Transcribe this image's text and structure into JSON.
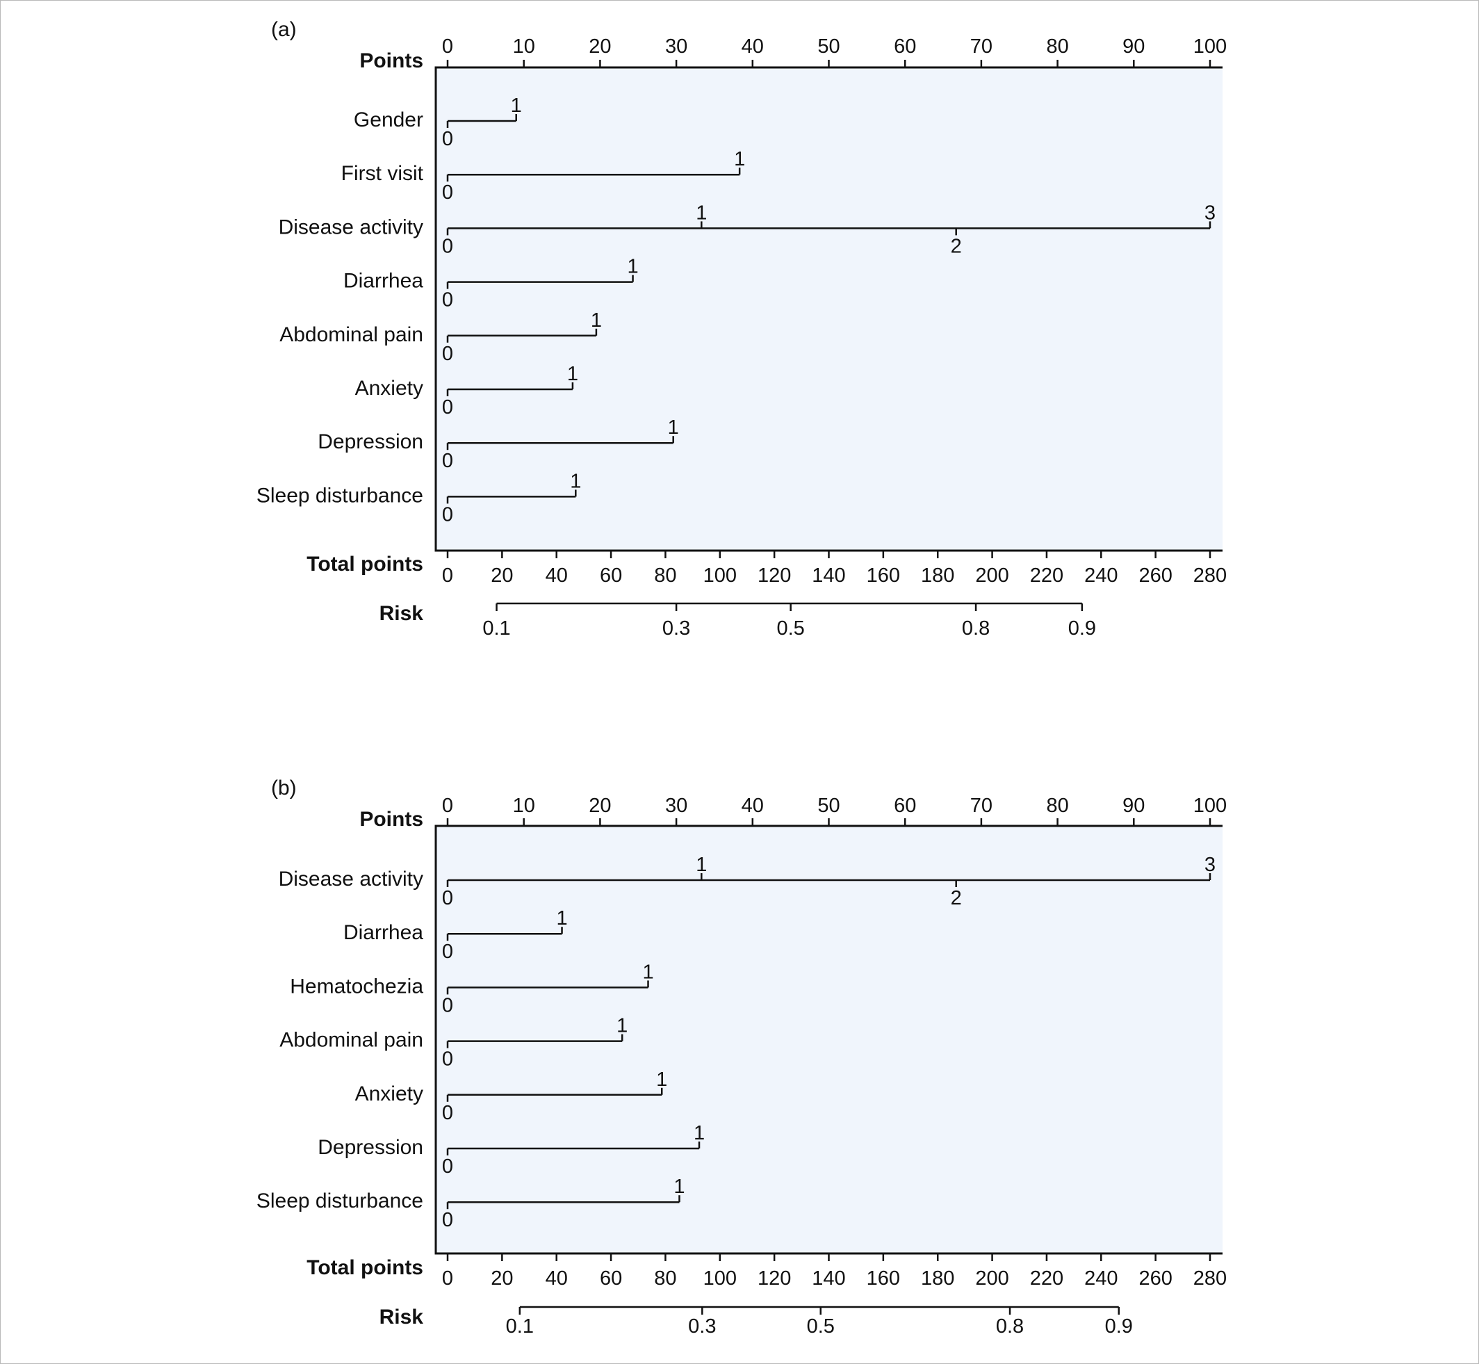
{
  "chart_data": [
    {
      "type": "nomogram",
      "panel_label": "(a)",
      "points_label": "Points",
      "total_points_label": "Total points",
      "risk_label": "Risk",
      "points_axis": {
        "range": [
          0,
          100
        ],
        "ticks": [
          0,
          10,
          20,
          30,
          40,
          50,
          60,
          70,
          80,
          90,
          100
        ]
      },
      "total_points_axis": {
        "range": [
          0,
          280
        ],
        "ticks": [
          0,
          20,
          40,
          60,
          80,
          100,
          120,
          140,
          160,
          180,
          200,
          220,
          240,
          260,
          280
        ]
      },
      "risk_axis": [
        {
          "label": "0.1",
          "total_points": 18
        },
        {
          "label": "0.3",
          "total_points": 84
        },
        {
          "label": "0.5",
          "total_points": 126
        },
        {
          "label": "0.8",
          "total_points": 194
        },
        {
          "label": "0.9",
          "total_points": 233
        }
      ],
      "variables": [
        {
          "name": "Gender",
          "levels": [
            {
              "label": "0",
              "points": 0,
              "position": "below"
            },
            {
              "label": "1",
              "points": 9,
              "position": "above"
            }
          ]
        },
        {
          "name": "First visit",
          "levels": [
            {
              "label": "0",
              "points": 0,
              "position": "below"
            },
            {
              "label": "1",
              "points": 38.3,
              "position": "above"
            }
          ]
        },
        {
          "name": "Disease activity",
          "levels": [
            {
              "label": "0",
              "points": 0,
              "position": "below"
            },
            {
              "label": "1",
              "points": 33.3,
              "position": "above"
            },
            {
              "label": "2",
              "points": 66.7,
              "position": "below"
            },
            {
              "label": "3",
              "points": 100,
              "position": "above"
            }
          ]
        },
        {
          "name": "Diarrhea",
          "levels": [
            {
              "label": "0",
              "points": 0,
              "position": "below"
            },
            {
              "label": "1",
              "points": 24.3,
              "position": "above"
            }
          ]
        },
        {
          "name": "Abdominal pain",
          "levels": [
            {
              "label": "0",
              "points": 0,
              "position": "below"
            },
            {
              "label": "1",
              "points": 19.5,
              "position": "above"
            }
          ]
        },
        {
          "name": "Anxiety",
          "levels": [
            {
              "label": "0",
              "points": 0,
              "position": "below"
            },
            {
              "label": "1",
              "points": 16.4,
              "position": "above"
            }
          ]
        },
        {
          "name": "Depression",
          "levels": [
            {
              "label": "0",
              "points": 0,
              "position": "below"
            },
            {
              "label": "1",
              "points": 29.6,
              "position": "above"
            }
          ]
        },
        {
          "name": "Sleep disturbance",
          "levels": [
            {
              "label": "0",
              "points": 0,
              "position": "below"
            },
            {
              "label": "1",
              "points": 16.8,
              "position": "above"
            }
          ]
        }
      ]
    },
    {
      "type": "nomogram",
      "panel_label": "(b)",
      "points_label": "Points",
      "total_points_label": "Total points",
      "risk_label": "Risk",
      "points_axis": {
        "range": [
          0,
          100
        ],
        "ticks": [
          0,
          10,
          20,
          30,
          40,
          50,
          60,
          70,
          80,
          90,
          100
        ]
      },
      "total_points_axis": {
        "range": [
          0,
          280
        ],
        "ticks": [
          0,
          20,
          40,
          60,
          80,
          100,
          120,
          140,
          160,
          180,
          200,
          220,
          240,
          260,
          280
        ]
      },
      "risk_axis": [
        {
          "label": "0.1",
          "total_points": 26.5
        },
        {
          "label": "0.3",
          "total_points": 93.5
        },
        {
          "label": "0.5",
          "total_points": 137
        },
        {
          "label": "0.8",
          "total_points": 206.5
        },
        {
          "label": "0.9",
          "total_points": 246.5
        }
      ],
      "variables": [
        {
          "name": "Disease activity",
          "levels": [
            {
              "label": "0",
              "points": 0,
              "position": "below"
            },
            {
              "label": "1",
              "points": 33.3,
              "position": "above"
            },
            {
              "label": "2",
              "points": 66.7,
              "position": "below"
            },
            {
              "label": "3",
              "points": 100,
              "position": "above"
            }
          ]
        },
        {
          "name": "Diarrhea",
          "levels": [
            {
              "label": "0",
              "points": 0,
              "position": "below"
            },
            {
              "label": "1",
              "points": 15,
              "position": "above"
            }
          ]
        },
        {
          "name": "Hematochezia",
          "levels": [
            {
              "label": "0",
              "points": 0,
              "position": "below"
            },
            {
              "label": "1",
              "points": 26.3,
              "position": "above"
            }
          ]
        },
        {
          "name": "Abdominal pain",
          "levels": [
            {
              "label": "0",
              "points": 0,
              "position": "below"
            },
            {
              "label": "1",
              "points": 22.9,
              "position": "above"
            }
          ]
        },
        {
          "name": "Anxiety",
          "levels": [
            {
              "label": "0",
              "points": 0,
              "position": "below"
            },
            {
              "label": "1",
              "points": 28.1,
              "position": "above"
            }
          ]
        },
        {
          "name": "Depression",
          "levels": [
            {
              "label": "0",
              "points": 0,
              "position": "below"
            },
            {
              "label": "1",
              "points": 33,
              "position": "above"
            }
          ]
        },
        {
          "name": "Sleep disturbance",
          "levels": [
            {
              "label": "0",
              "points": 0,
              "position": "below"
            },
            {
              "label": "1",
              "points": 30.4,
              "position": "above"
            }
          ]
        }
      ]
    }
  ]
}
